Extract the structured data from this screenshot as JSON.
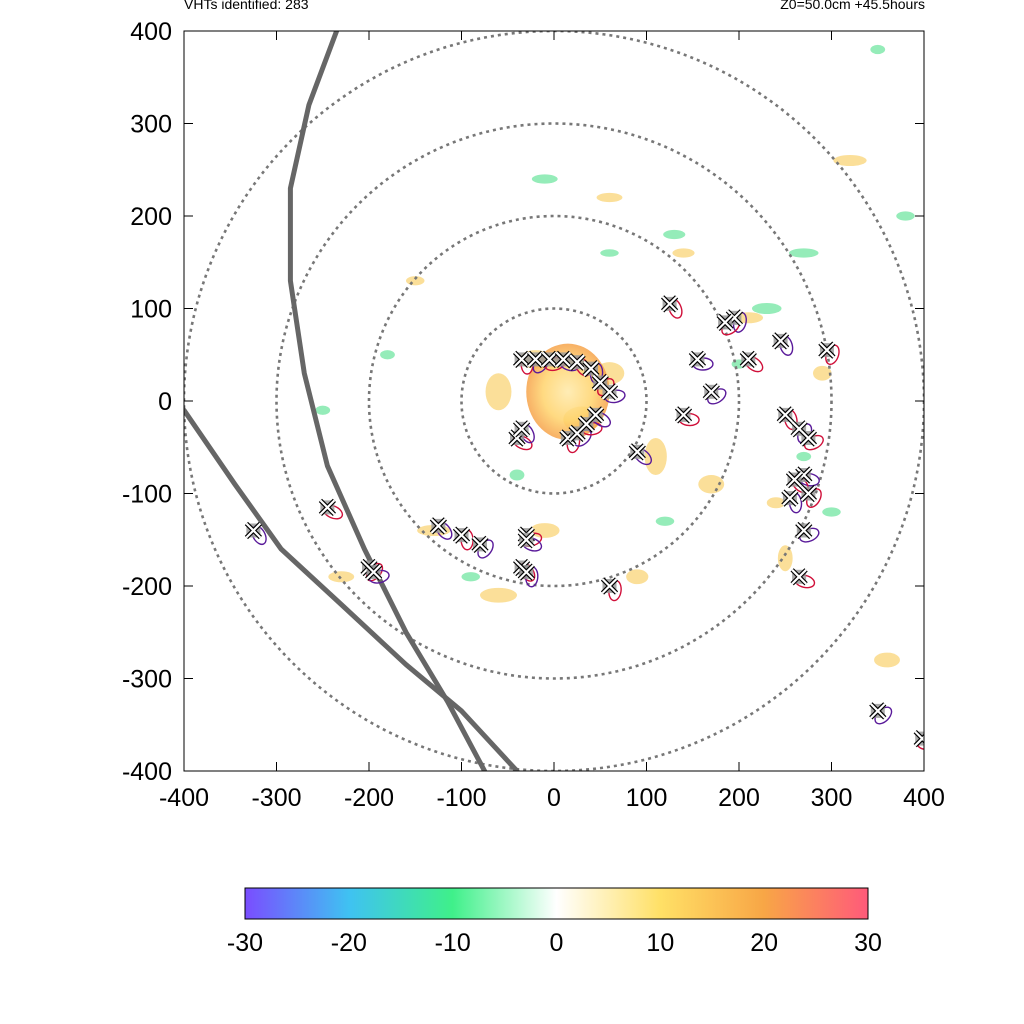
{
  "header": {
    "vht_count_label": "VHTs identified: 283",
    "z0_time_label": "Z0=50.0cm  +45.5hours"
  },
  "colors": {
    "ring": "#777777",
    "track": "#666666",
    "marker_fill": "#9a9a9a",
    "contour_red": "#d0103a",
    "contour_purple": "#5a1b9a",
    "warm": "#f7c545",
    "cool": "#4ee08a"
  },
  "chart_data": {
    "type": "heatmap",
    "xlim": [
      -400,
      400
    ],
    "ylim": [
      -400,
      400
    ],
    "x_ticks": [
      -400,
      -300,
      -200,
      -100,
      0,
      100,
      200,
      300,
      400
    ],
    "y_ticks": [
      -400,
      -300,
      -200,
      -100,
      0,
      100,
      200,
      300,
      400
    ],
    "colorbar": {
      "range": [
        -30,
        30
      ],
      "ticks": [
        -30,
        -20,
        -10,
        0,
        10,
        20,
        30
      ],
      "stops": [
        "#7a4dff",
        "#3fc2f2",
        "#3ff08a",
        "#ffffff",
        "#ffe066",
        "#f8a646",
        "#ff5a7a"
      ]
    },
    "range_rings_radius": [
      100,
      200,
      300,
      400
    ],
    "tracks": [
      [
        [
          -235,
          400
        ],
        [
          -265,
          320
        ],
        [
          -285,
          230
        ],
        [
          -285,
          130
        ],
        [
          -270,
          30
        ],
        [
          -245,
          -70
        ],
        [
          -205,
          -160
        ],
        [
          -160,
          -250
        ],
        [
          -115,
          -325
        ],
        [
          -75,
          -400
        ]
      ],
      [
        [
          -400,
          -10
        ],
        [
          -345,
          -90
        ],
        [
          -295,
          -160
        ],
        [
          -230,
          -220
        ],
        [
          -160,
          -285
        ],
        [
          -100,
          -335
        ],
        [
          -40,
          -400
        ]
      ]
    ],
    "eye_warm_core": {
      "center": [
        15,
        10
      ],
      "radii": [
        45,
        52
      ]
    },
    "warm_patches": [
      [
        -20,
        45,
        18,
        10
      ],
      [
        30,
        -20,
        20,
        14
      ],
      [
        -60,
        10,
        14,
        20
      ],
      [
        60,
        30,
        16,
        12
      ],
      [
        110,
        -60,
        12,
        20
      ],
      [
        170,
        -90,
        14,
        10
      ],
      [
        250,
        -170,
        8,
        14
      ],
      [
        290,
        30,
        10,
        8
      ],
      [
        320,
        260,
        18,
        6
      ],
      [
        -60,
        -210,
        20,
        8
      ],
      [
        -130,
        -140,
        18,
        6
      ],
      [
        60,
        220,
        14,
        5
      ],
      [
        -150,
        130,
        10,
        5
      ],
      [
        -10,
        -140,
        16,
        8
      ],
      [
        90,
        -190,
        12,
        8
      ],
      [
        360,
        -280,
        14,
        8
      ],
      [
        210,
        90,
        16,
        6
      ],
      [
        -230,
        -190,
        14,
        6
      ],
      [
        240,
        -110,
        10,
        6
      ],
      [
        140,
        160,
        12,
        5
      ]
    ],
    "cool_patches": [
      [
        230,
        100,
        16,
        6
      ],
      [
        -250,
        -10,
        8,
        5
      ],
      [
        130,
        180,
        12,
        5
      ],
      [
        -10,
        240,
        14,
        5
      ],
      [
        270,
        160,
        16,
        5
      ],
      [
        300,
        -120,
        10,
        5
      ],
      [
        -40,
        -80,
        8,
        6
      ],
      [
        380,
        200,
        10,
        5
      ],
      [
        -180,
        50,
        8,
        5
      ],
      [
        60,
        160,
        10,
        4
      ],
      [
        200,
        40,
        8,
        5
      ],
      [
        -90,
        -190,
        10,
        5
      ],
      [
        350,
        380,
        8,
        5
      ],
      [
        270,
        -60,
        8,
        5
      ],
      [
        120,
        -130,
        10,
        5
      ]
    ],
    "vht_markers": [
      [
        -35,
        45
      ],
      [
        -20,
        45
      ],
      [
        -5,
        45
      ],
      [
        10,
        45
      ],
      [
        25,
        42
      ],
      [
        40,
        35
      ],
      [
        50,
        20
      ],
      [
        60,
        10
      ],
      [
        -40,
        -40
      ],
      [
        -35,
        -30
      ],
      [
        15,
        -40
      ],
      [
        25,
        -35
      ],
      [
        35,
        -25
      ],
      [
        45,
        -15
      ],
      [
        125,
        105
      ],
      [
        195,
        90
      ],
      [
        185,
        85
      ],
      [
        155,
        45
      ],
      [
        210,
        45
      ],
      [
        245,
        65
      ],
      [
        295,
        55
      ],
      [
        170,
        10
      ],
      [
        140,
        -15
      ],
      [
        90,
        -55
      ],
      [
        250,
        -15
      ],
      [
        265,
        -30
      ],
      [
        275,
        -40
      ],
      [
        270,
        -80
      ],
      [
        260,
        -85
      ],
      [
        255,
        -105
      ],
      [
        275,
        -100
      ],
      [
        270,
        -140
      ],
      [
        265,
        -190
      ],
      [
        -125,
        -135
      ],
      [
        -100,
        -145
      ],
      [
        -80,
        -155
      ],
      [
        -30,
        -145
      ],
      [
        -30,
        -150
      ],
      [
        -35,
        -180
      ],
      [
        -30,
        -185
      ],
      [
        -200,
        -180
      ],
      [
        -195,
        -185
      ],
      [
        -245,
        -115
      ],
      [
        -325,
        -140
      ],
      [
        60,
        -200
      ],
      [
        350,
        -335
      ],
      [
        398,
        -365
      ]
    ]
  }
}
